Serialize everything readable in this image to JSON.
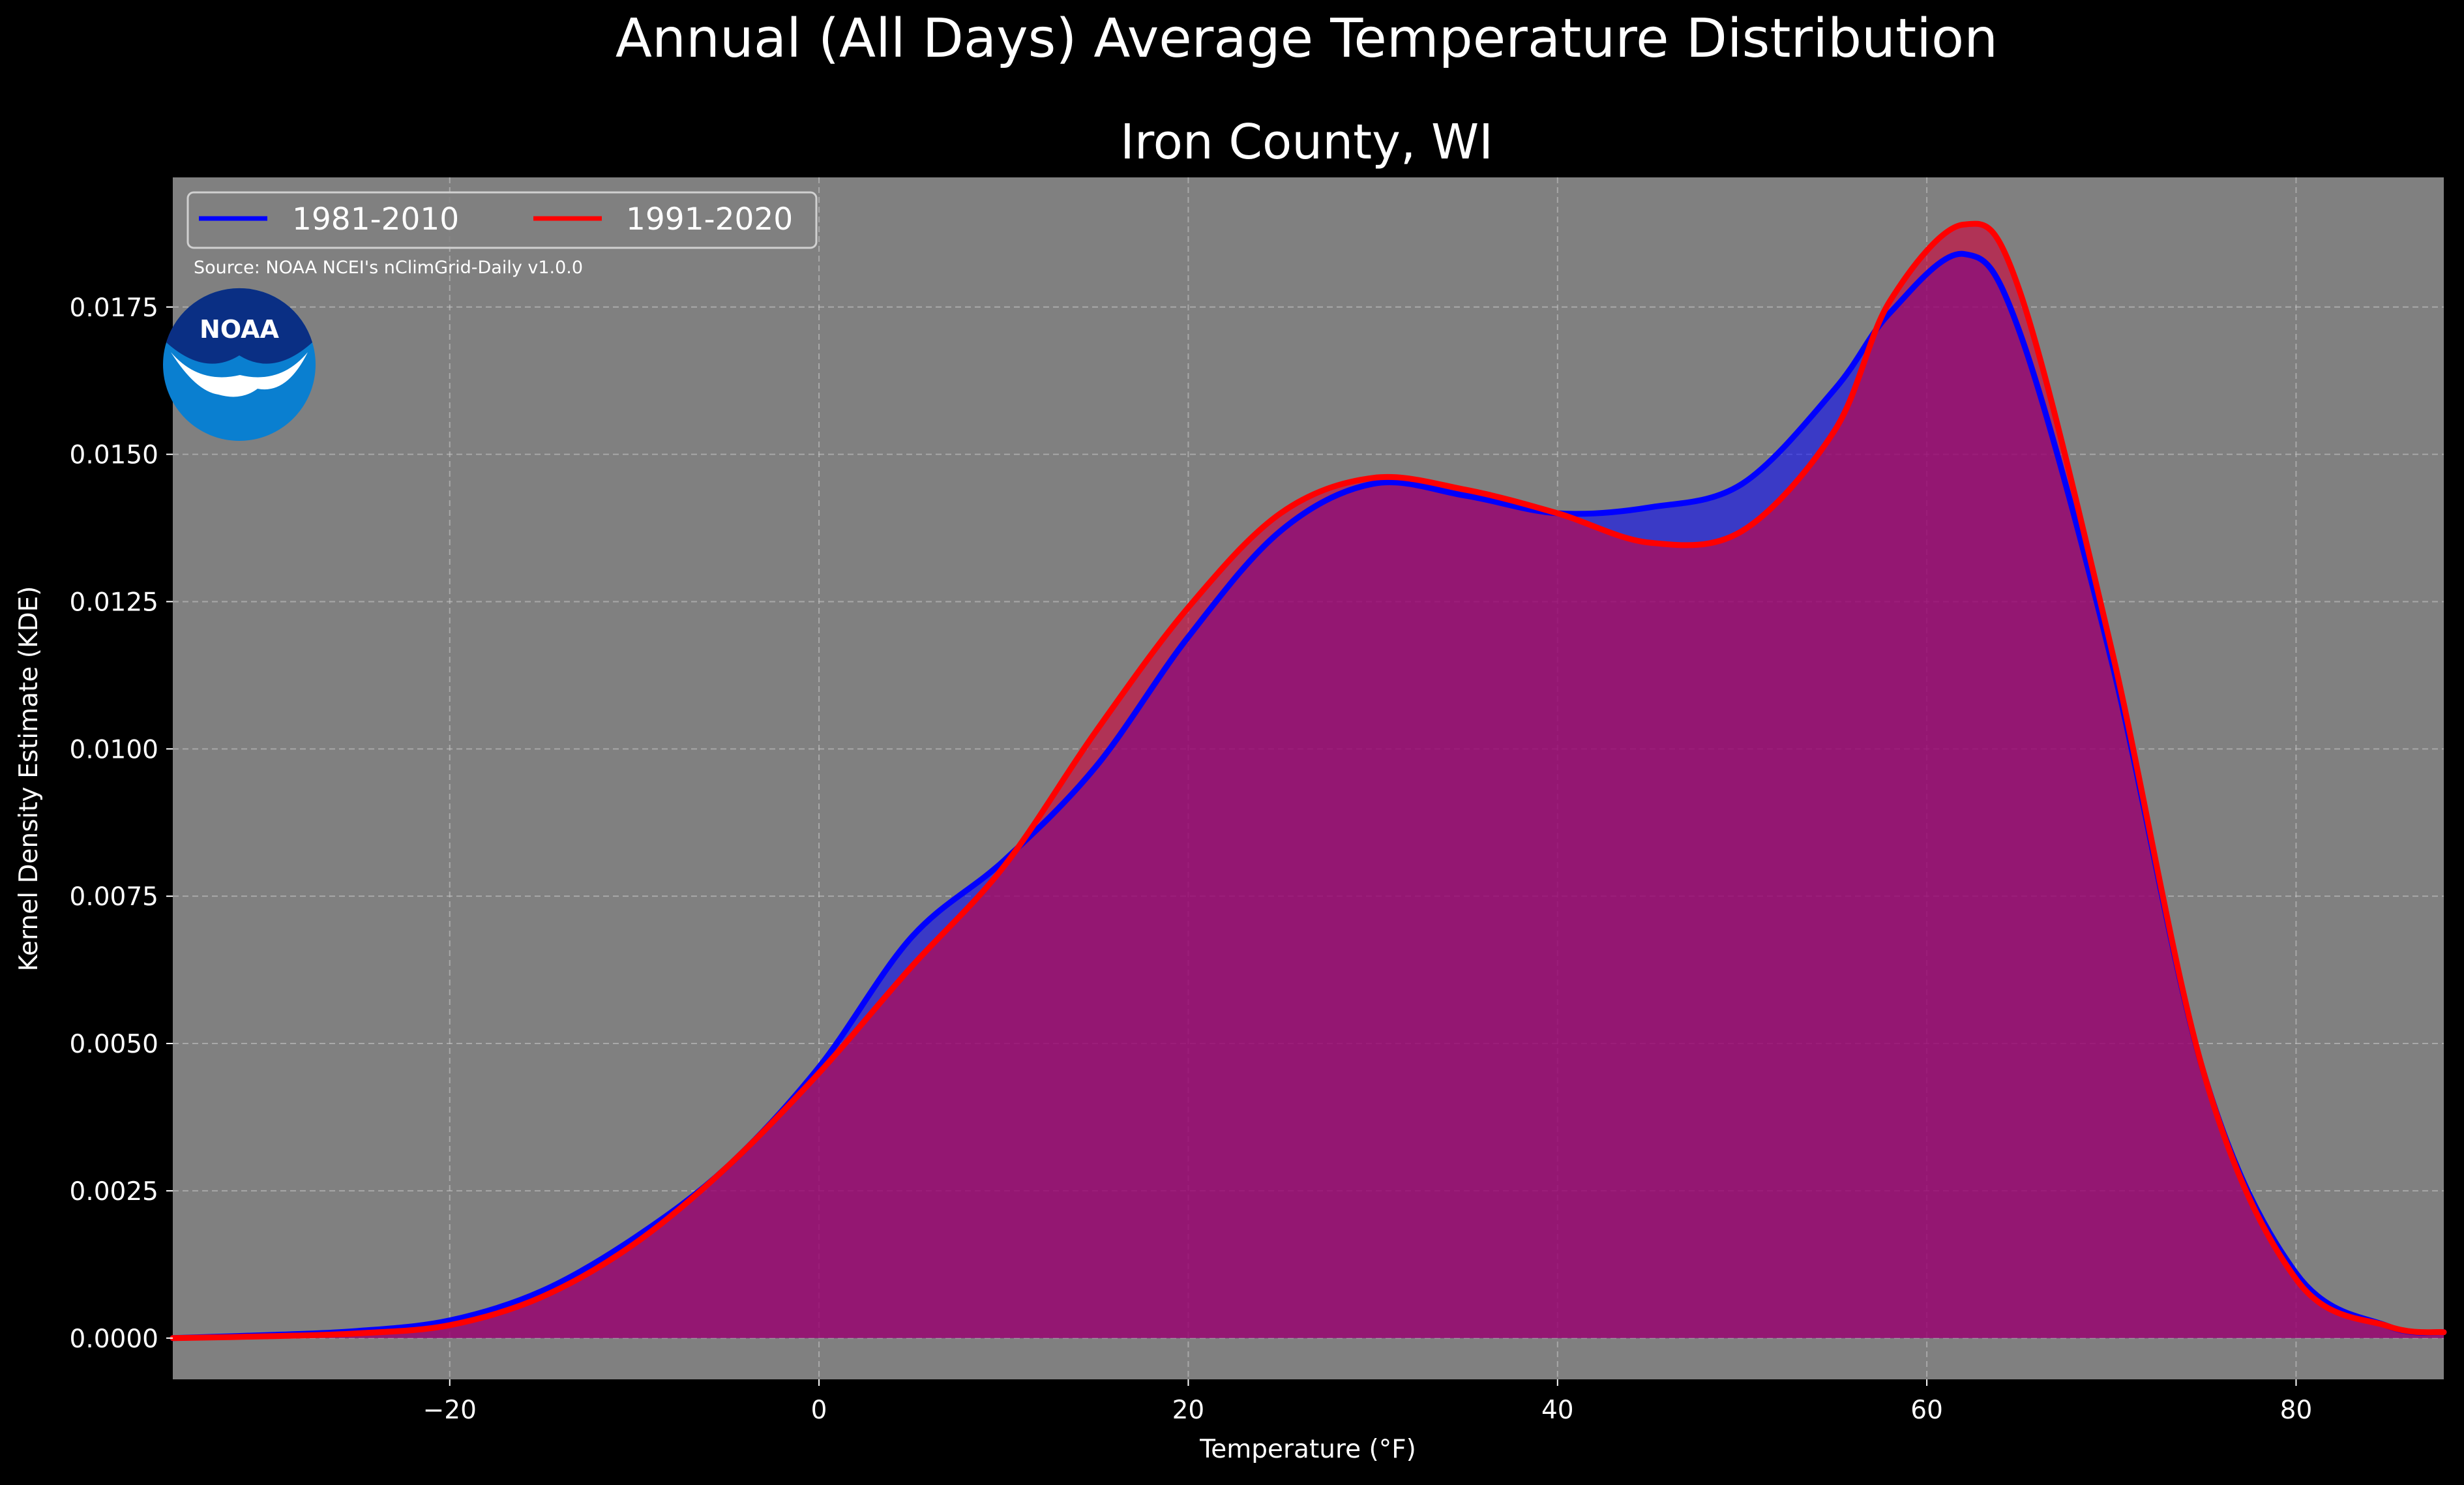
{
  "chart_data": {
    "type": "area",
    "title": "Annual (All Days) Average Temperature Distribution",
    "subtitle": "Iron County, WI",
    "xlabel": "Temperature ($^\\circ$F)",
    "xlabel_display": "Temperature (°F)",
    "ylabel": "Kernel Density Estimate (KDE)",
    "xlim": [
      -35,
      88
    ],
    "ylim": [
      -0.0007,
      0.0197
    ],
    "xticks": [
      -20,
      0,
      20,
      40,
      60,
      80
    ],
    "xtick_labels": [
      "−20",
      "0",
      "20",
      "40",
      "60",
      "80"
    ],
    "yticks": [
      0,
      0.0025,
      0.005,
      0.0075,
      0.01,
      0.0125,
      0.015,
      0.0175
    ],
    "ytick_labels": [
      "0.0000",
      "0.0025",
      "0.0050",
      "0.0075",
      "0.0100",
      "0.0125",
      "0.0150",
      "0.0175"
    ],
    "grid": true,
    "legend_position": "top-left",
    "source_note": "Source: NOAA NCEI's nClimGrid-Daily v1.0.0",
    "logo_text": "NOAA",
    "colors": {
      "background": "#000000",
      "plot_background": "#808080",
      "text": "#ffffff",
      "grid": "#c8c8c8",
      "logo_outer": "#0a7fd0",
      "logo_top": "#0a2f84"
    },
    "series": [
      {
        "name": "1981-2010",
        "color": "#0000ff",
        "fill": "#0000ff",
        "points": [
          [
            -35,
            0.0
          ],
          [
            -30,
            5e-05
          ],
          [
            -25,
            0.00012
          ],
          [
            -20,
            0.0003
          ],
          [
            -15,
            0.0008
          ],
          [
            -10,
            0.0017
          ],
          [
            -5,
            0.0029
          ],
          [
            0,
            0.0046
          ],
          [
            5,
            0.0068
          ],
          [
            10,
            0.0081
          ],
          [
            15,
            0.0097
          ],
          [
            20,
            0.0119
          ],
          [
            25,
            0.0137
          ],
          [
            30,
            0.0145
          ],
          [
            35,
            0.0143
          ],
          [
            40,
            0.014
          ],
          [
            45,
            0.0141
          ],
          [
            50,
            0.0145
          ],
          [
            55,
            0.0161
          ],
          [
            58,
            0.0174
          ],
          [
            62,
            0.0184
          ],
          [
            65,
            0.0171
          ],
          [
            70,
            0.0115
          ],
          [
            75,
            0.0045
          ],
          [
            80,
            0.0011
          ],
          [
            85,
            0.0002
          ],
          [
            88,
            0.0001
          ]
        ]
      },
      {
        "name": "1991-2020",
        "color": "#ff0000",
        "fill": "#d0003a",
        "points": [
          [
            -35,
            0.0
          ],
          [
            -30,
            3e-05
          ],
          [
            -25,
            8e-05
          ],
          [
            -20,
            0.00022
          ],
          [
            -15,
            0.0007
          ],
          [
            -10,
            0.0016
          ],
          [
            -5,
            0.0029
          ],
          [
            0,
            0.0045
          ],
          [
            5,
            0.0063
          ],
          [
            10,
            0.008
          ],
          [
            15,
            0.0103
          ],
          [
            20,
            0.0124
          ],
          [
            25,
            0.014
          ],
          [
            30,
            0.0146
          ],
          [
            35,
            0.0144
          ],
          [
            40,
            0.014
          ],
          [
            45,
            0.0135
          ],
          [
            50,
            0.0137
          ],
          [
            55,
            0.0154
          ],
          [
            58,
            0.0176
          ],
          [
            62,
            0.0189
          ],
          [
            65,
            0.0178
          ],
          [
            70,
            0.0117
          ],
          [
            75,
            0.0045
          ],
          [
            80,
            0.001
          ],
          [
            85,
            0.0002
          ],
          [
            88,
            0.0001
          ]
        ]
      }
    ]
  }
}
